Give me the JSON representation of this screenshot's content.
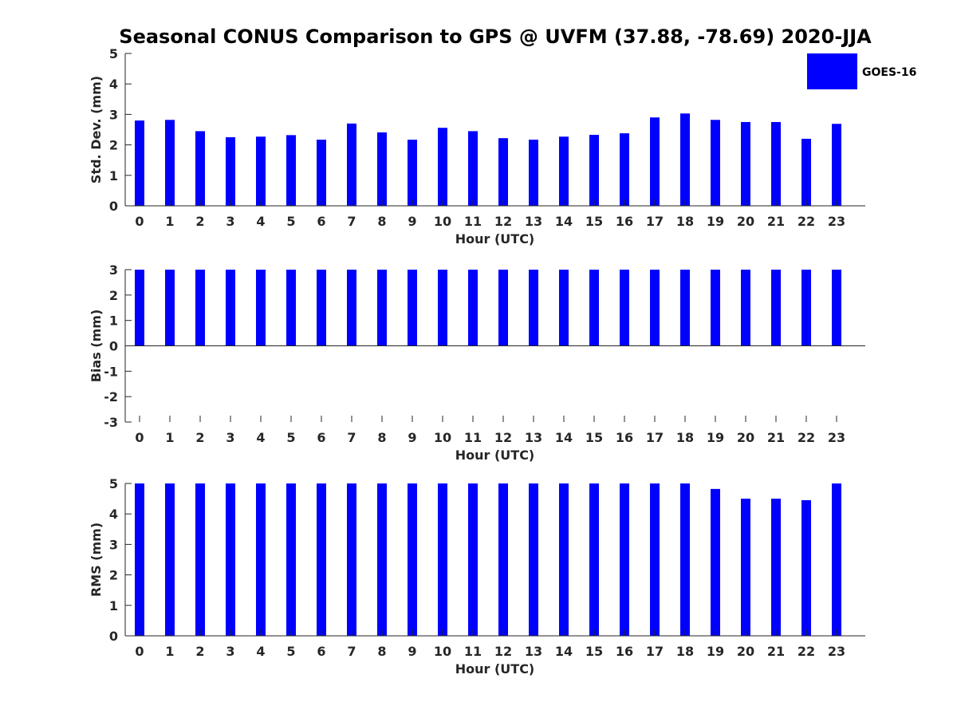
{
  "title": "Seasonal CONUS Comparison to GPS @ UVFM (37.88, -78.69) 2020-JJA",
  "legend": {
    "label": "GOES-16",
    "color": "#0000ff",
    "placement": "top-right"
  },
  "chart_data": [
    {
      "type": "bar",
      "name": "std-dev",
      "categories": [
        "0",
        "1",
        "2",
        "3",
        "4",
        "5",
        "6",
        "7",
        "8",
        "9",
        "10",
        "11",
        "12",
        "13",
        "14",
        "15",
        "16",
        "17",
        "18",
        "19",
        "20",
        "21",
        "22",
        "23"
      ],
      "series": [
        {
          "name": "GOES-16",
          "color": "#0000ff",
          "values": [
            2.8,
            2.82,
            2.45,
            2.25,
            2.27,
            2.32,
            2.17,
            2.7,
            2.41,
            2.17,
            2.56,
            2.45,
            2.22,
            2.17,
            2.27,
            2.33,
            2.38,
            2.9,
            3.03,
            2.82,
            2.75,
            2.75,
            2.2,
            2.69
          ]
        }
      ],
      "xlabel": "Hour (UTC)",
      "ylabel": "Std. Dev. (mm)",
      "ylim": [
        0,
        5
      ],
      "yticks": [
        "0",
        "1",
        "2",
        "3",
        "4",
        "5"
      ],
      "grid": false
    },
    {
      "type": "bar",
      "name": "bias",
      "categories": [
        "0",
        "1",
        "2",
        "3",
        "4",
        "5",
        "6",
        "7",
        "8",
        "9",
        "10",
        "11",
        "12",
        "13",
        "14",
        "15",
        "16",
        "17",
        "18",
        "19",
        "20",
        "21",
        "22",
        "23"
      ],
      "series": [
        {
          "name": "GOES-16",
          "color": "#0000ff",
          "values": [
            3,
            3,
            3,
            3,
            3,
            3,
            3,
            3,
            3,
            3,
            3,
            3,
            3,
            3,
            3,
            3,
            3,
            3,
            3,
            3,
            3,
            3,
            3,
            3
          ]
        }
      ],
      "xlabel": "Hour (UTC)",
      "ylabel": "Bias (mm)",
      "ylim": [
        -3,
        3
      ],
      "yticks": [
        "-3",
        "-2",
        "-1",
        "0",
        "1",
        "2",
        "3"
      ],
      "grid": false
    },
    {
      "type": "bar",
      "name": "rms",
      "categories": [
        "0",
        "1",
        "2",
        "3",
        "4",
        "5",
        "6",
        "7",
        "8",
        "9",
        "10",
        "11",
        "12",
        "13",
        "14",
        "15",
        "16",
        "17",
        "18",
        "19",
        "20",
        "21",
        "22",
        "23"
      ],
      "series": [
        {
          "name": "GOES-16",
          "color": "#0000ff",
          "values": [
            5,
            5,
            5,
            5,
            5,
            5,
            5,
            5,
            5,
            5,
            5,
            5,
            5,
            5,
            5,
            5,
            5,
            5,
            5,
            4.82,
            4.5,
            4.5,
            4.45,
            5
          ]
        }
      ],
      "xlabel": "Hour (UTC)",
      "ylabel": "RMS (mm)",
      "ylim": [
        0,
        5
      ],
      "yticks": [
        "0",
        "1",
        "2",
        "3",
        "4",
        "5"
      ],
      "grid": false
    }
  ]
}
